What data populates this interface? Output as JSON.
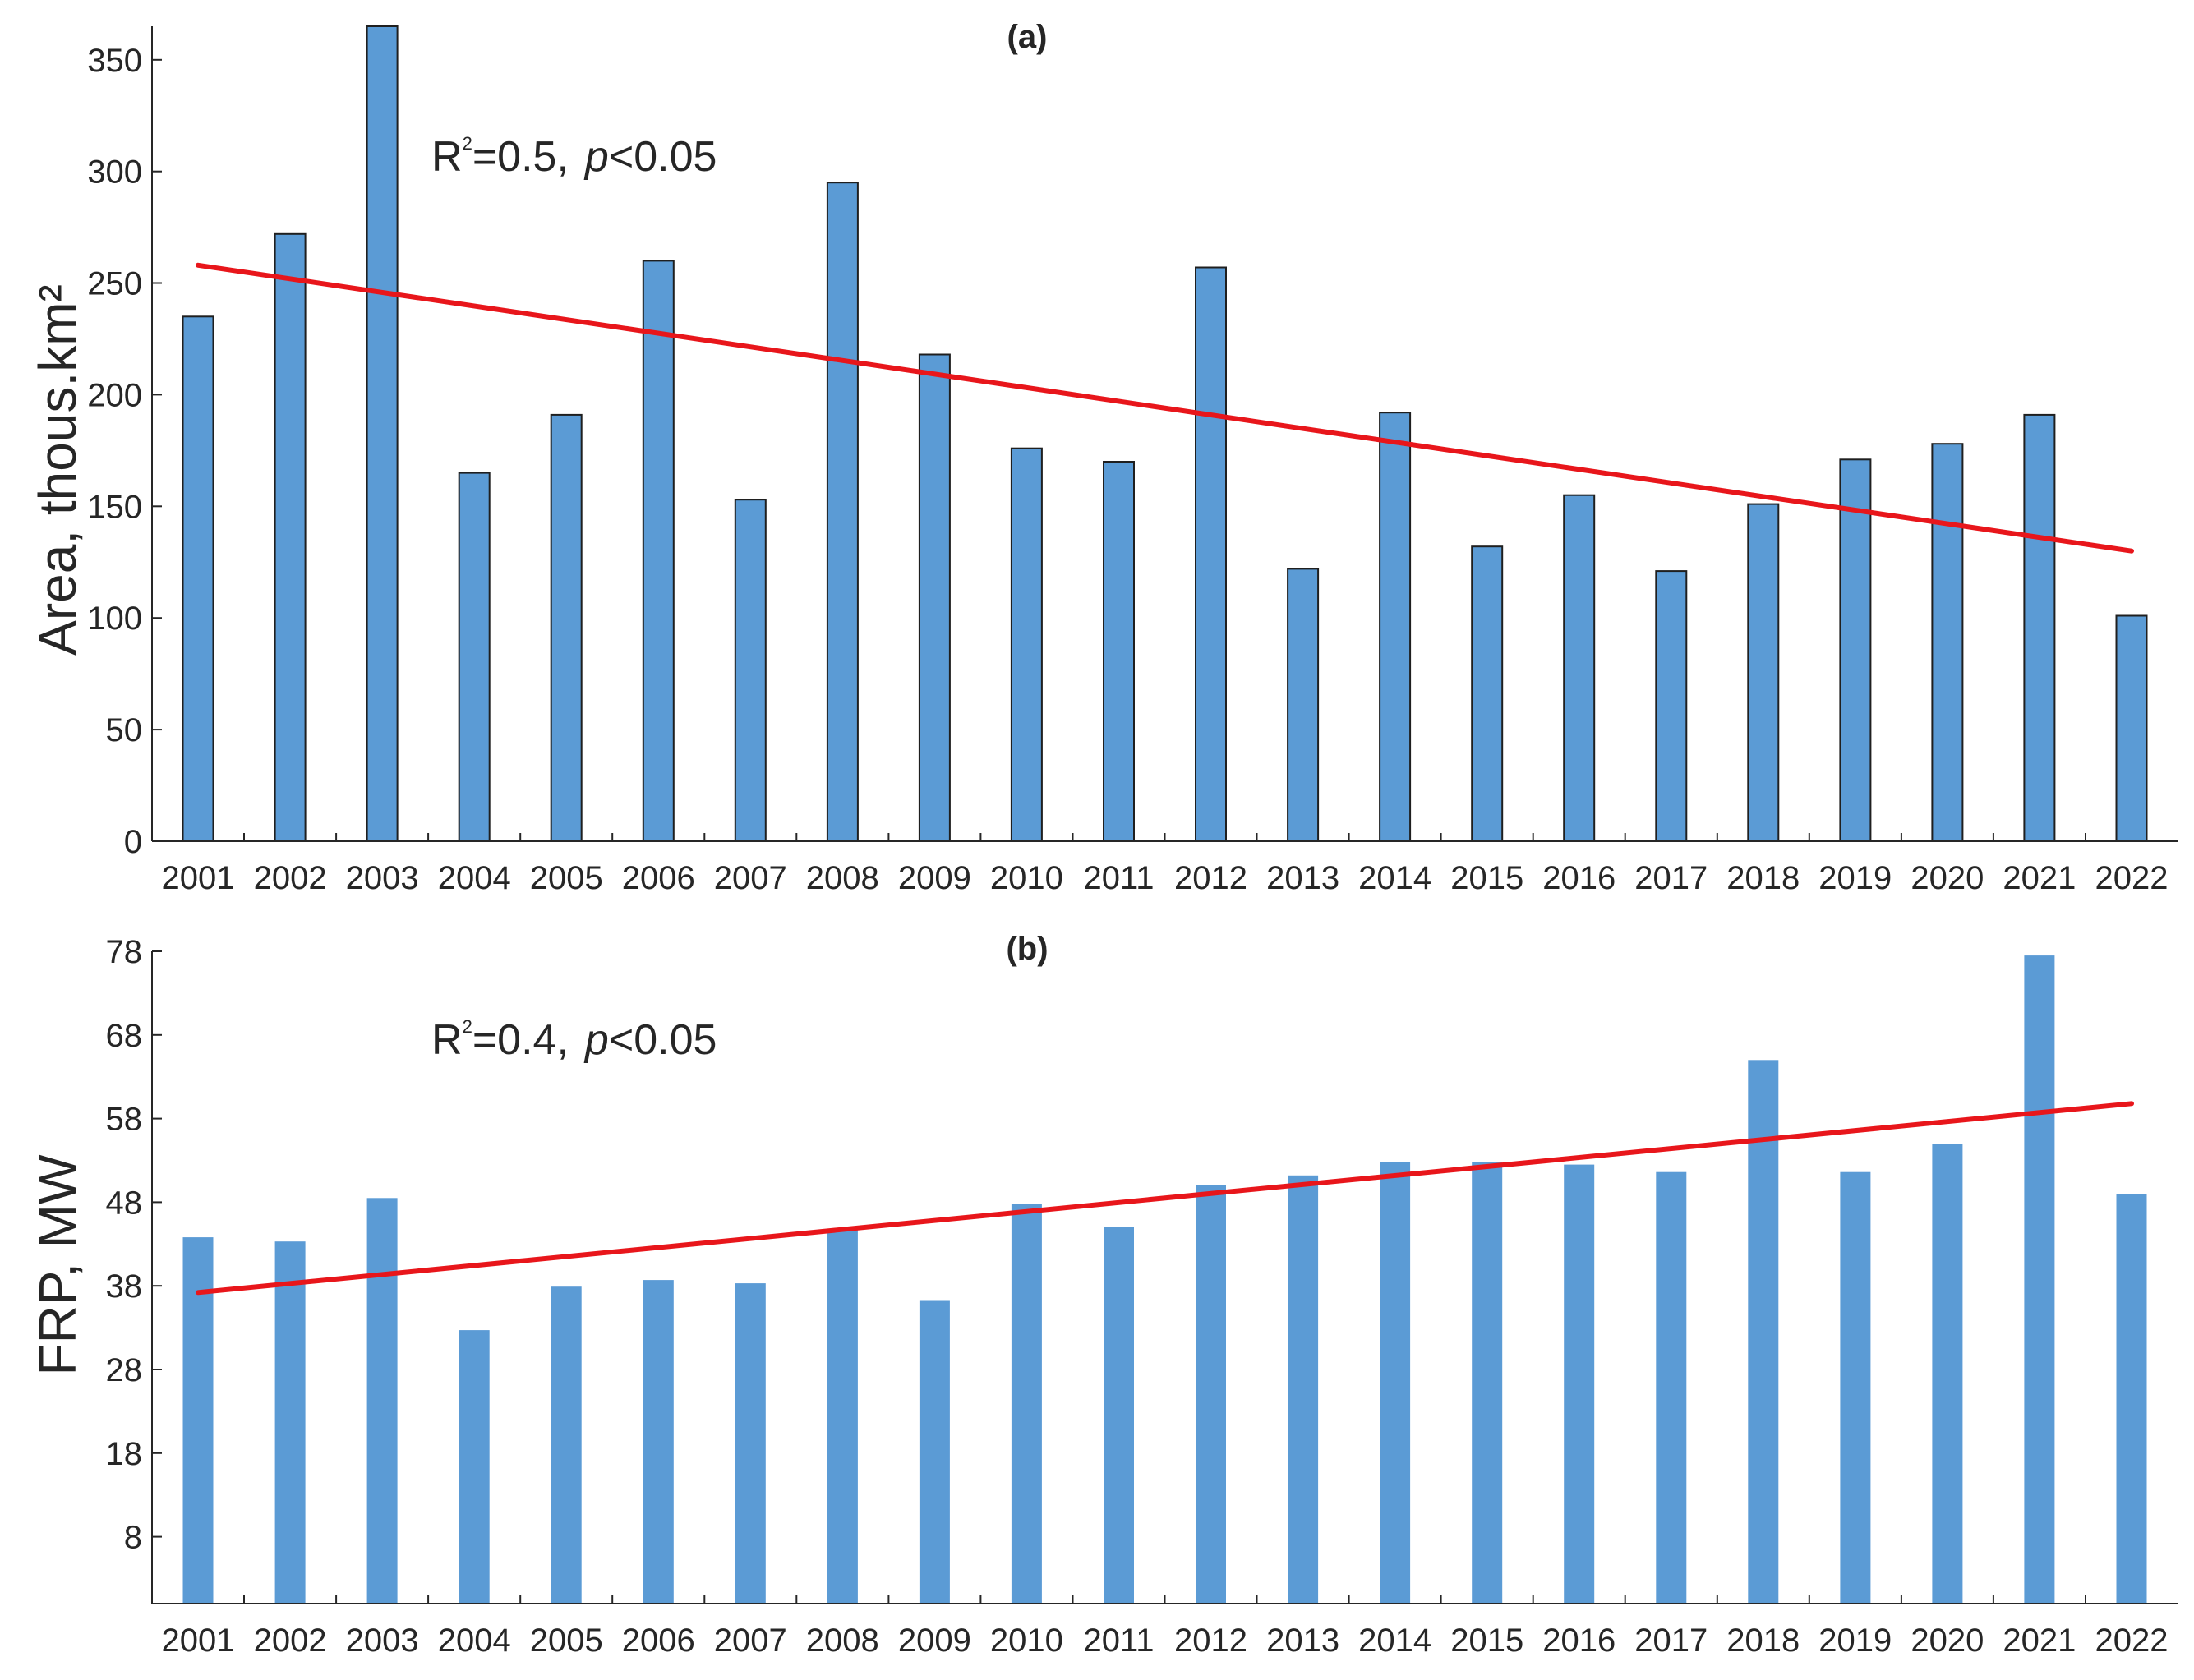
{
  "colors": {
    "bar": "#5b9bd5",
    "bar_edge": "#1f1f1f",
    "trend": "#e8161b",
    "axis": "#262626"
  },
  "chart_data": [
    {
      "type": "bar",
      "panel_label": "(a)",
      "title": "",
      "ylabel": "Area, thous.km²",
      "xlabel": "",
      "categories": [
        "2001",
        "2002",
        "2003",
        "2004",
        "2005",
        "2006",
        "2007",
        "2008",
        "2009",
        "2010",
        "2011",
        "2012",
        "2013",
        "2014",
        "2015",
        "2016",
        "2017",
        "2018",
        "2019",
        "2020",
        "2021",
        "2022"
      ],
      "values": [
        235,
        272,
        365,
        165,
        191,
        260,
        153,
        295,
        218,
        176,
        170,
        257,
        122,
        192,
        132,
        155,
        121,
        151,
        171,
        178,
        191,
        101
      ],
      "ylim": [
        0,
        365
      ],
      "yticks": [
        0,
        50,
        100,
        150,
        200,
        250,
        300,
        350
      ],
      "bar_edges": true,
      "trend_line": {
        "start": 258,
        "end": 130
      },
      "stat": {
        "r2_prefix": "R",
        "r2_sup": "2",
        "r2_value": "=0.5,",
        "p_italic": "p",
        "p_value": "<0.05"
      }
    },
    {
      "type": "bar",
      "panel_label": "(b)",
      "title": "",
      "ylabel": "FRP, MW",
      "xlabel": "",
      "categories": [
        "2001",
        "2002",
        "2003",
        "2004",
        "2005",
        "2006",
        "2007",
        "2008",
        "2009",
        "2010",
        "2011",
        "2012",
        "2013",
        "2014",
        "2015",
        "2016",
        "2017",
        "2018",
        "2019",
        "2020",
        "2021",
        "2022"
      ],
      "values": [
        43.8,
        43.3,
        48.5,
        32.7,
        37.9,
        38.7,
        38.3,
        44.8,
        36.2,
        47.8,
        45.0,
        50.0,
        51.2,
        52.8,
        52.8,
        52.5,
        51.6,
        65.0,
        51.6,
        55.0,
        77.5,
        49.0
      ],
      "ylim": [
        0,
        78
      ],
      "yticks": [
        8,
        18,
        28,
        38,
        48,
        58,
        68,
        78
      ],
      "bar_edges": false,
      "trend_line": {
        "start": 37.2,
        "end": 59.8
      },
      "stat": {
        "r2_prefix": "R",
        "r2_sup": "2",
        "r2_value": "=0.4,",
        "p_italic": "p",
        "p_value": "<0.05"
      }
    }
  ]
}
